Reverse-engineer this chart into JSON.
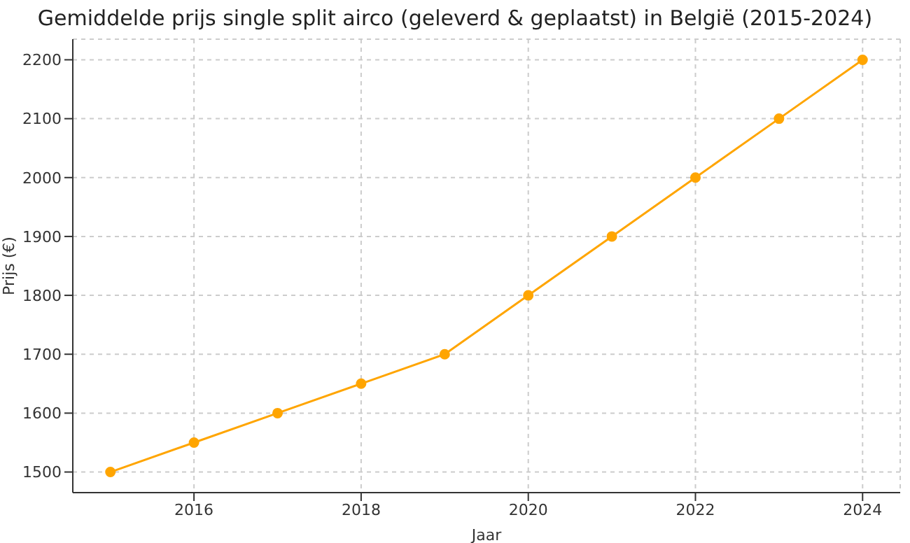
{
  "chart_data": {
    "type": "line",
    "title": "Gemiddelde prijs single split airco (geleverd & geplaatst) in België (2015-2024)",
    "xlabel": "Jaar",
    "ylabel": "Prijs (€)",
    "x": [
      2015,
      2016,
      2017,
      2018,
      2019,
      2020,
      2021,
      2022,
      2023,
      2024
    ],
    "series": [
      {
        "color": "#ffa500",
        "values": [
          1500,
          1550,
          1600,
          1650,
          1700,
          1800,
          1900,
          2000,
          2100,
          2200
        ]
      }
    ],
    "xlim": [
      2014.55,
      2024.45
    ],
    "xticks": [
      2016,
      2018,
      2020,
      2022,
      2024
    ],
    "ylim": [
      1465,
      2235
    ],
    "yticks": [
      1500,
      1600,
      1700,
      1800,
      1900,
      2000,
      2100,
      2200
    ],
    "grid": true,
    "marker": "circle",
    "line_style": "solid",
    "legend": false
  }
}
